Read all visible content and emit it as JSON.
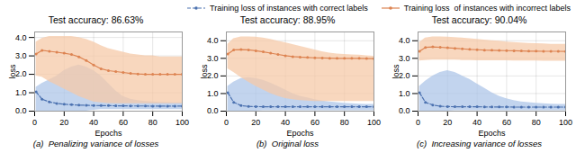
{
  "chart_data": [
    {
      "type": "line",
      "title": "Test accuracy: 86.63%",
      "caption": "(a)  Penalizing variance of losses",
      "xlabel": "Epochs",
      "ylabel": "loss",
      "x": [
        1,
        5,
        10,
        15,
        20,
        25,
        30,
        35,
        40,
        45,
        50,
        55,
        60,
        65,
        70,
        75,
        80,
        85,
        90,
        95,
        100
      ],
      "xlim": [
        0,
        100
      ],
      "xticks": [
        0,
        20,
        40,
        60,
        80,
        100
      ],
      "ylim": [
        0,
        4.3
      ],
      "yticks": [
        0,
        1,
        2,
        3,
        4
      ],
      "grid": true,
      "legend": "upper right",
      "series": [
        {
          "name": "Training loss of instances with correct labels",
          "color": "#4c72b0",
          "band_color": "#aec6e8",
          "line_style": "dashed",
          "marker": "circle",
          "values": [
            1.05,
            0.65,
            0.5,
            0.42,
            0.38,
            0.35,
            0.33,
            0.32,
            0.31,
            0.3,
            0.3,
            0.29,
            0.29,
            0.28,
            0.28,
            0.28,
            0.27,
            0.27,
            0.27,
            0.27,
            0.27
          ],
          "lo": [
            0.0,
            0.0,
            0.0,
            0.0,
            0.0,
            0.0,
            0.0,
            0.0,
            0.05,
            0.08,
            0.08,
            0.08,
            0.08,
            0.08,
            0.08,
            0.08,
            0.08,
            0.08,
            0.08,
            0.08,
            0.08
          ],
          "hi": [
            1.3,
            1.5,
            1.7,
            1.9,
            2.2,
            2.4,
            2.5,
            2.4,
            2.2,
            1.9,
            1.5,
            1.1,
            0.8,
            0.65,
            0.58,
            0.52,
            0.5,
            0.48,
            0.46,
            0.45,
            0.45
          ]
        },
        {
          "name": "Training loss  of instances with incorrect labels",
          "color": "#dd8452",
          "band_color": "#f5c9a8",
          "line_style": "solid",
          "marker": "circle",
          "values": [
            3.1,
            3.3,
            3.25,
            3.2,
            3.15,
            3.08,
            2.95,
            2.75,
            2.5,
            2.3,
            2.2,
            2.15,
            2.1,
            2.05,
            2.02,
            2.0,
            2.0,
            2.0,
            2.0,
            2.0,
            2.0
          ],
          "lo": [
            1.9,
            1.85,
            1.6,
            1.4,
            1.2,
            1.0,
            0.8,
            0.65,
            0.5,
            0.45,
            0.42,
            0.4,
            0.4,
            0.4,
            0.4,
            0.4,
            0.4,
            0.4,
            0.4,
            0.4,
            0.4
          ],
          "hi": [
            3.75,
            3.95,
            4.05,
            4.05,
            4.05,
            4.05,
            4.0,
            3.9,
            3.75,
            3.55,
            3.4,
            3.3,
            3.2,
            3.1,
            3.05,
            3.0,
            3.0,
            2.95,
            2.95,
            2.95,
            2.95
          ]
        }
      ]
    },
    {
      "type": "line",
      "title": "Test accuracy: 88.95%",
      "caption": "(b)  Original loss",
      "xlabel": "Epochs",
      "ylabel": "loss",
      "x": [
        1,
        5,
        10,
        15,
        20,
        25,
        30,
        35,
        40,
        45,
        50,
        55,
        60,
        65,
        70,
        75,
        80,
        85,
        90,
        95,
        100
      ],
      "xlim": [
        0,
        100
      ],
      "xticks": [
        0,
        20,
        40,
        60,
        80,
        100
      ],
      "ylim": [
        0,
        4.5
      ],
      "yticks": [
        0,
        1,
        2,
        3,
        4
      ],
      "grid": true,
      "series": [
        {
          "color": "#4c72b0",
          "band_color": "#aec6e8",
          "line_style": "dashed",
          "marker": "circle",
          "values": [
            1.05,
            0.5,
            0.32,
            0.27,
            0.26,
            0.25,
            0.25,
            0.25,
            0.25,
            0.25,
            0.25,
            0.25,
            0.25,
            0.25,
            0.25,
            0.25,
            0.25,
            0.25,
            0.25,
            0.25,
            0.25
          ],
          "lo": [
            0.0,
            0.0,
            0.0,
            0.0,
            0.0,
            0.02,
            0.02,
            0.02,
            0.02,
            0.02,
            0.02,
            0.02,
            0.02,
            0.02,
            0.02,
            0.02,
            0.02,
            0.02,
            0.02,
            0.02,
            0.02
          ],
          "hi": [
            1.4,
            1.65,
            1.85,
            1.9,
            1.85,
            1.75,
            1.6,
            1.4,
            1.2,
            1.0,
            0.85,
            0.75,
            0.65,
            0.58,
            0.52,
            0.48,
            0.45,
            0.42,
            0.4,
            0.38,
            0.38
          ]
        },
        {
          "color": "#dd8452",
          "band_color": "#f5c9a8",
          "line_style": "solid",
          "marker": "circle",
          "values": [
            3.25,
            3.48,
            3.5,
            3.48,
            3.43,
            3.37,
            3.3,
            3.22,
            3.15,
            3.1,
            3.07,
            3.05,
            3.03,
            3.02,
            3.01,
            3.0,
            3.0,
            3.0,
            3.0,
            2.99,
            2.98
          ],
          "lo": [
            2.4,
            2.2,
            1.9,
            1.65,
            1.4,
            1.2,
            1.0,
            0.85,
            0.72,
            0.65,
            0.6,
            0.58,
            0.55,
            0.55,
            0.55,
            0.55,
            0.55,
            0.55,
            0.55,
            0.55,
            0.55
          ],
          "hi": [
            3.8,
            4.12,
            4.22,
            4.22,
            4.2,
            4.15,
            4.08,
            3.98,
            3.88,
            3.78,
            3.68,
            3.58,
            3.48,
            3.38,
            3.3,
            3.25,
            3.22,
            3.2,
            3.18,
            3.15,
            3.12
          ]
        }
      ]
    },
    {
      "type": "line",
      "title": "Test accuracy: 90.04%",
      "caption": "(c)  Increasing variance of losses",
      "xlabel": "Epochs",
      "ylabel": "loss",
      "x": [
        1,
        5,
        10,
        15,
        20,
        25,
        30,
        35,
        40,
        45,
        50,
        55,
        60,
        65,
        70,
        75,
        80,
        85,
        90,
        95,
        100
      ],
      "xlim": [
        0,
        100
      ],
      "xticks": [
        0,
        20,
        40,
        60,
        80,
        100
      ],
      "ylim": [
        0,
        4.5
      ],
      "yticks": [
        0,
        1,
        2,
        3,
        4
      ],
      "grid": true,
      "series": [
        {
          "color": "#4c72b0",
          "band_color": "#aec6e8",
          "line_style": "dashed",
          "marker": "circle",
          "values": [
            1.05,
            0.5,
            0.35,
            0.28,
            0.26,
            0.25,
            0.25,
            0.25,
            0.25,
            0.24,
            0.24,
            0.24,
            0.24,
            0.23,
            0.23,
            0.23,
            0.23,
            0.23,
            0.23,
            0.23,
            0.23
          ],
          "lo": [
            0.0,
            0.0,
            0.0,
            0.0,
            0.0,
            0.02,
            0.02,
            0.02,
            0.02,
            0.02,
            0.02,
            0.02,
            0.02,
            0.02,
            0.02,
            0.02,
            0.02,
            0.02,
            0.02,
            0.02,
            0.02
          ],
          "hi": [
            1.4,
            1.7,
            2.0,
            2.2,
            2.3,
            2.2,
            2.0,
            1.8,
            1.55,
            1.3,
            1.05,
            0.85,
            0.7,
            0.6,
            0.52,
            0.48,
            0.45,
            0.42,
            0.4,
            0.38,
            0.38
          ]
        },
        {
          "color": "#dd8452",
          "band_color": "#f5c9a8",
          "line_style": "solid",
          "marker": "circle",
          "values": [
            3.4,
            3.62,
            3.65,
            3.63,
            3.6,
            3.57,
            3.54,
            3.51,
            3.49,
            3.47,
            3.46,
            3.45,
            3.44,
            3.43,
            3.42,
            3.41,
            3.41,
            3.4,
            3.4,
            3.4,
            3.39
          ],
          "lo": [
            2.85,
            2.88,
            2.9,
            2.9,
            2.9,
            2.9,
            2.88,
            2.88,
            2.87,
            2.87,
            2.86,
            2.86,
            2.86,
            2.85,
            2.85,
            2.85,
            2.85,
            2.84,
            2.84,
            2.84,
            2.84
          ],
          "hi": [
            3.9,
            4.15,
            4.22,
            4.22,
            4.2,
            4.18,
            4.15,
            4.12,
            4.08,
            4.04,
            4.0,
            3.97,
            3.93,
            3.9,
            3.87,
            3.85,
            3.83,
            3.82,
            3.8,
            3.8,
            3.8
          ]
        }
      ]
    }
  ]
}
